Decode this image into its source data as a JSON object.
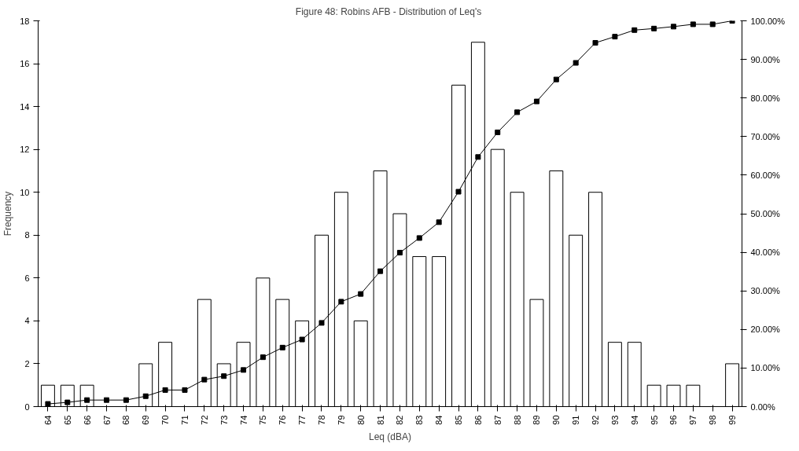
{
  "chart_data": {
    "type": "bar",
    "title": "Figure 48:  Robins AFB - Distribution of Leq's",
    "xlabel": "Leq (dBA)",
    "ylabel": "Frequency",
    "categories": [
      "64",
      "65",
      "66",
      "67",
      "68",
      "69",
      "70",
      "71",
      "72",
      "73",
      "74",
      "75",
      "76",
      "77",
      "78",
      "79",
      "80",
      "81",
      "82",
      "83",
      "84",
      "85",
      "86",
      "87",
      "88",
      "89",
      "90",
      "91",
      "92",
      "93",
      "94",
      "95",
      "96",
      "97",
      "98",
      "99"
    ],
    "series": [
      {
        "color": "#ffffff",
        "values": [
          1,
          1,
          1,
          0,
          0,
          2,
          3,
          0,
          5,
          2,
          3,
          6,
          5,
          4,
          8,
          10,
          4,
          11,
          9,
          7,
          7,
          15,
          17,
          12,
          10,
          5,
          11,
          8,
          10,
          3,
          3,
          1,
          1,
          1,
          0,
          2
        ]
      },
      {
        "type": "line",
        "axis": "y2",
        "color": "#000000",
        "marker": "square",
        "values": [
          0.7,
          1.1,
          1.7,
          1.7,
          1.7,
          2.7,
          4.3,
          4.3,
          7.0,
          7.9,
          9.5,
          12.8,
          15.3,
          17.4,
          21.7,
          27.2,
          29.2,
          35.1,
          39.9,
          43.7,
          47.8,
          55.7,
          64.7,
          71.1,
          76.3,
          79.1,
          84.8,
          89.1,
          94.3,
          95.9,
          97.6,
          98.0,
          98.5,
          99.1,
          99.1,
          100
        ]
      }
    ],
    "ylim": [
      0,
      18
    ],
    "yticks": [
      0,
      2,
      4,
      6,
      8,
      10,
      12,
      14,
      16,
      18
    ],
    "y2lim": [
      0,
      100
    ],
    "y2ticks": [
      {
        "value": 0,
        "label": "0.00%"
      },
      {
        "value": 10,
        "label": "10.00%"
      },
      {
        "value": 20,
        "label": "20.00%"
      },
      {
        "value": 30,
        "label": "30.00%"
      },
      {
        "value": 40,
        "label": "40.00%"
      },
      {
        "value": 50,
        "label": "50.00%"
      },
      {
        "value": 60,
        "label": "60.00%"
      },
      {
        "value": 70,
        "label": "70.00%"
      },
      {
        "value": 80,
        "label": "80.00%"
      },
      {
        "value": 90,
        "label": "90.00%"
      },
      {
        "value": 100,
        "label": "100.00%"
      }
    ],
    "grid": false
  }
}
